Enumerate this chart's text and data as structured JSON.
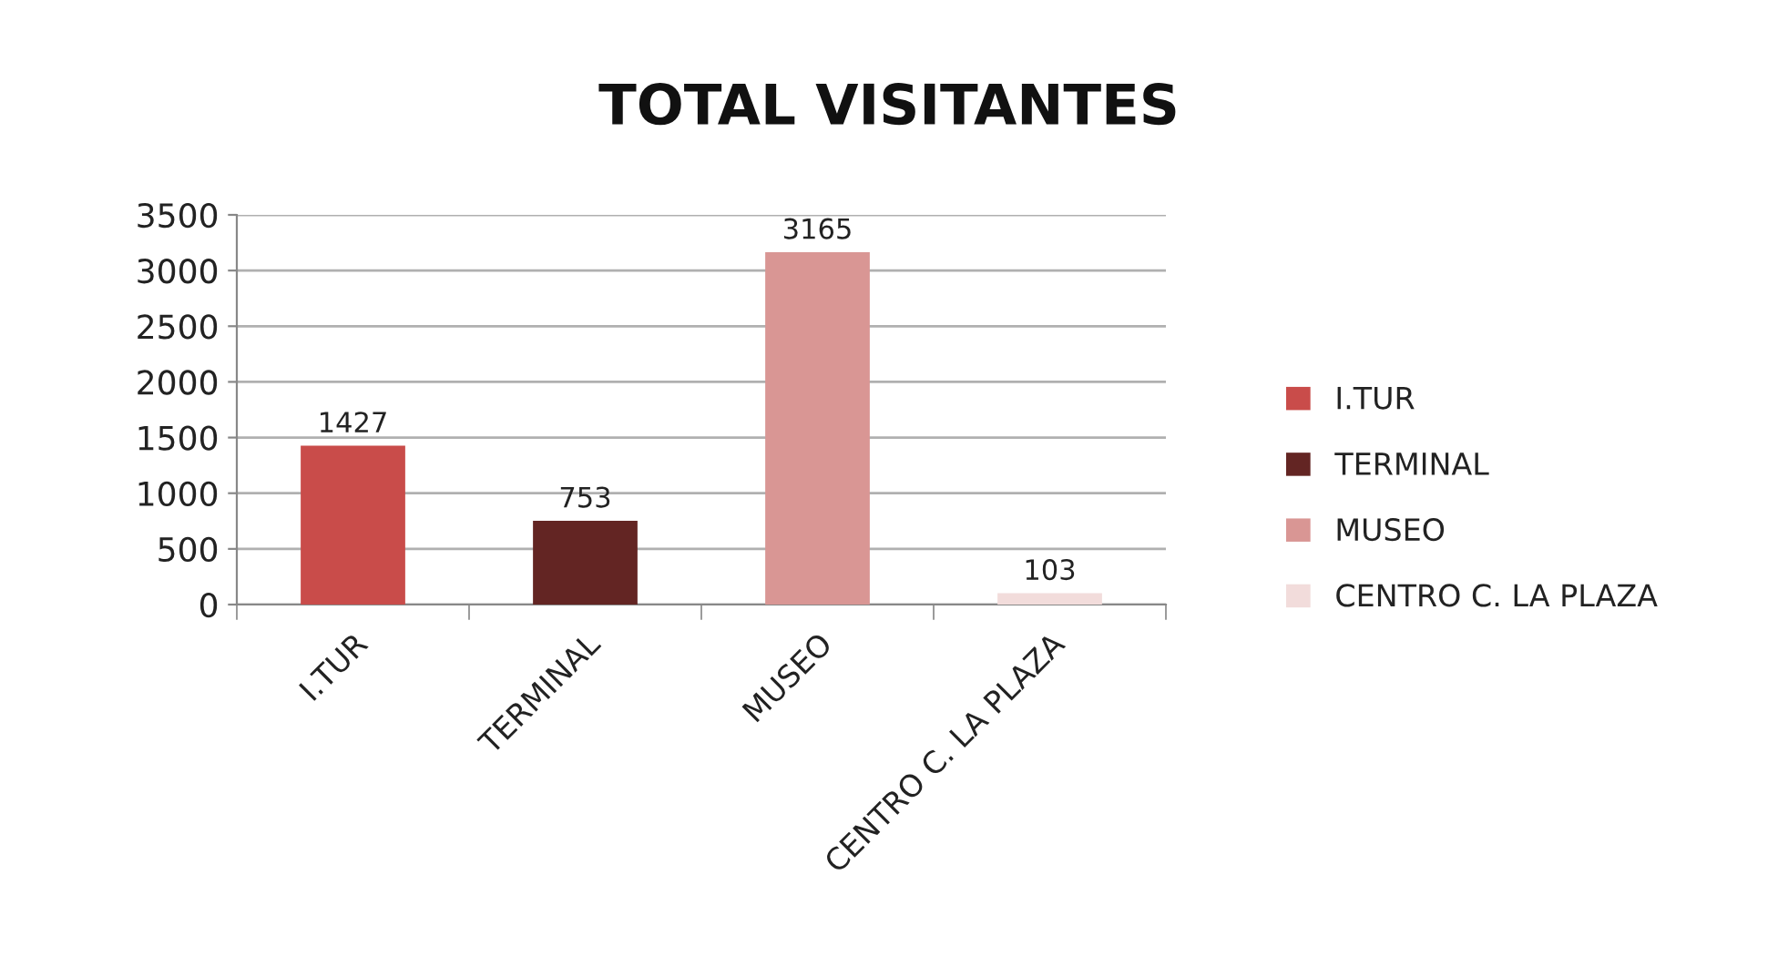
{
  "chart_data": {
    "type": "bar",
    "title": "TOTAL VISITANTES",
    "categories": [
      "I.TUR",
      "TERMINAL",
      "MUSEO",
      "CENTRO C. LA PLAZA"
    ],
    "stacked": true,
    "series": [
      {
        "name": "I.TUR",
        "color": "#c94c4a",
        "values": [
          1427,
          null,
          null,
          null
        ]
      },
      {
        "name": "TERMINAL",
        "color": "#632523",
        "values": [
          null,
          753,
          null,
          null
        ]
      },
      {
        "name": "MUSEO",
        "color": "#d99694",
        "values": [
          null,
          null,
          3165,
          null
        ]
      },
      {
        "name": "CENTRO C. LA PLAZA",
        "color": "#f2dcdb",
        "values": [
          null,
          null,
          null,
          103
        ]
      }
    ],
    "ylim": [
      0,
      3500
    ],
    "yticks": [
      0,
      500,
      1000,
      1500,
      2000,
      2500,
      3000,
      3500
    ],
    "grid": "y",
    "legend": "right",
    "data_labels": true
  }
}
